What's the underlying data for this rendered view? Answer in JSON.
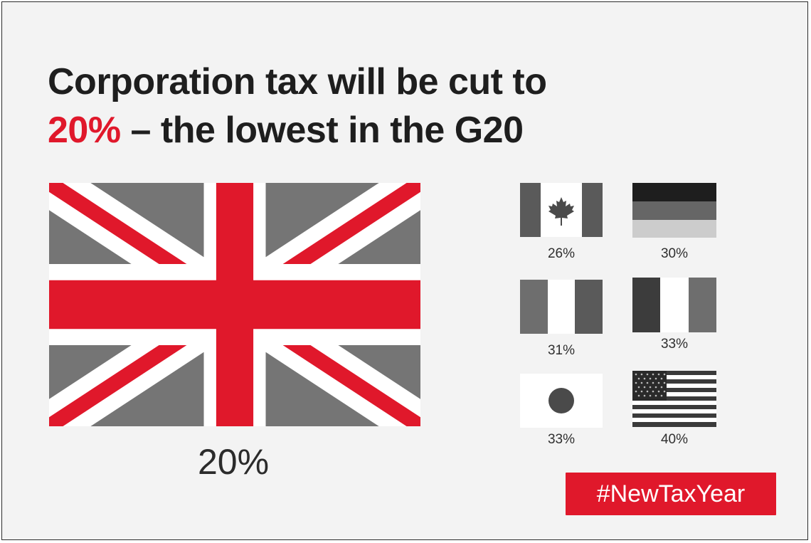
{
  "headline": {
    "line1": "Corporation tax will be cut to",
    "accent": "20%",
    "rest": " – the lowest in the G20"
  },
  "uk": {
    "rate": "20%",
    "flag_icon": "union-jack-flag"
  },
  "countries": [
    {
      "flag_icon": "canada-flag",
      "rate": "26%"
    },
    {
      "flag_icon": "germany-flag",
      "rate": "30%"
    },
    {
      "flag_icon": "italy-flag",
      "rate": "31%"
    },
    {
      "flag_icon": "france-flag",
      "rate": "33%"
    },
    {
      "flag_icon": "japan-flag",
      "rate": "33%"
    },
    {
      "flag_icon": "usa-flag",
      "rate": "40%"
    }
  ],
  "hashtag": "#NewTaxYear",
  "colors": {
    "accent_red": "#e0182b",
    "dark_text": "#1e1e1e",
    "background": "#f3f3f3",
    "flag_grey": "#757575"
  }
}
